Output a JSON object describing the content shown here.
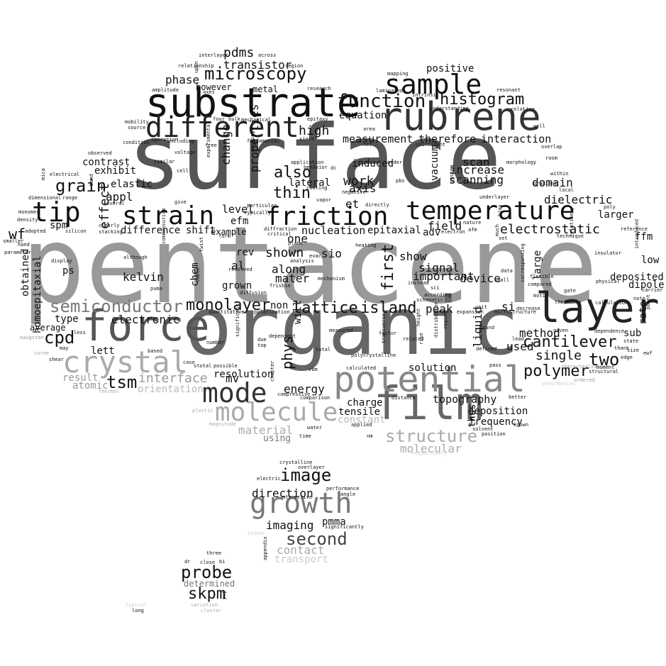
{
  "colors": {
    "background": "#ffffff",
    "black": "#111111",
    "dark": "#555555",
    "mid": "#7a7a7a",
    "light": "#a6a6a6",
    "faint": "#cccccc"
  },
  "words": [
    {
      "t": "pentacene",
      "c": "#999999"
    },
    {
      "t": "surface",
      "c": "#555555"
    },
    {
      "t": "organic",
      "c": "#666666"
    },
    {
      "t": "substrate",
      "c": "#111111"
    },
    {
      "t": "rubrene",
      "c": "#333333"
    },
    {
      "t": "different",
      "c": "#222222"
    },
    {
      "t": "film",
      "c": "#666666"
    },
    {
      "t": "force",
      "c": "#555555"
    },
    {
      "t": "layer",
      "c": "#222222"
    },
    {
      "t": "potential",
      "c": "#888888"
    },
    {
      "t": "growth",
      "c": "#777777"
    },
    {
      "t": "temperature",
      "c": "#111111"
    },
    {
      "t": "friction",
      "c": "#111111"
    },
    {
      "t": "strain",
      "c": "#111111"
    },
    {
      "t": "tip",
      "c": "#111111"
    },
    {
      "t": "sample",
      "c": "#111111"
    },
    {
      "t": "crystal",
      "c": "#aaaaaa"
    },
    {
      "t": "mode",
      "c": "#333333"
    },
    {
      "t": "molecule",
      "c": "#aaaaaa"
    },
    {
      "t": "microscopy",
      "c": "#111111"
    },
    {
      "t": "function",
      "c": "#111111"
    },
    {
      "t": "histogram",
      "c": "#111111"
    },
    {
      "t": "semiconductor",
      "c": "#777777"
    },
    {
      "t": "monolayer",
      "c": "#111111"
    },
    {
      "t": "lattice",
      "c": "#111111"
    },
    {
      "t": "island",
      "c": "#111111"
    },
    {
      "t": "structure",
      "c": "#aaaaaa"
    },
    {
      "t": "image",
      "c": "#111111"
    },
    {
      "t": "second",
      "c": "#444444"
    },
    {
      "t": "probe",
      "c": "#111111"
    },
    {
      "t": "skpm",
      "c": "#111111"
    },
    {
      "t": "tsm",
      "c": "#111111"
    },
    {
      "t": "cpd",
      "c": "#111111"
    },
    {
      "t": "grain",
      "c": "#111111"
    },
    {
      "t": "cantilever",
      "c": "#111111"
    },
    {
      "t": "polymer",
      "c": "#111111"
    },
    {
      "t": "two",
      "c": "#111111"
    },
    {
      "t": "electrostatic",
      "c": "#111111"
    },
    {
      "t": "transistor",
      "c": "#111111"
    },
    {
      "t": "pdms",
      "c": "#111111"
    },
    {
      "t": "phase",
      "c": "#111111"
    },
    {
      "t": "however",
      "c": "#111111"
    },
    {
      "t": "metal",
      "c": "#111111"
    },
    {
      "t": "also",
      "c": "#111111"
    },
    {
      "t": "thin",
      "c": "#111111"
    },
    {
      "t": "high",
      "c": "#111111"
    },
    {
      "t": "measurement",
      "c": "#111111"
    },
    {
      "t": "therefore",
      "c": "#111111"
    },
    {
      "t": "interaction",
      "c": "#111111"
    },
    {
      "t": "equation",
      "c": "#111111"
    },
    {
      "t": "positive",
      "c": "#111111"
    },
    {
      "t": "scan",
      "c": "#111111"
    },
    {
      "t": "increase",
      "c": "#111111"
    },
    {
      "t": "scanning",
      "c": "#111111"
    },
    {
      "t": "domain",
      "c": "#111111"
    },
    {
      "t": "dielectric",
      "c": "#111111"
    },
    {
      "t": "larger",
      "c": "#111111"
    },
    {
      "t": "ffm",
      "c": "#111111"
    },
    {
      "t": "low",
      "c": "#111111"
    },
    {
      "t": "deposited",
      "c": "#111111"
    },
    {
      "t": "dipole",
      "c": "#111111"
    },
    {
      "t": "rate",
      "c": "#111111"
    },
    {
      "t": "sub",
      "c": "#111111"
    },
    {
      "t": "large",
      "c": "#111111"
    },
    {
      "t": "method",
      "c": "#111111"
    },
    {
      "t": "used",
      "c": "#111111"
    },
    {
      "t": "single",
      "c": "#111111"
    },
    {
      "t": "liquid",
      "c": "#111111"
    },
    {
      "t": "si",
      "c": "#111111"
    },
    {
      "t": "peak",
      "c": "#111111"
    },
    {
      "t": "device",
      "c": "#111111"
    },
    {
      "t": "signal",
      "c": "#111111"
    },
    {
      "t": "important",
      "c": "#111111"
    },
    {
      "t": "show",
      "c": "#111111"
    },
    {
      "t": "first",
      "c": "#111111"
    },
    {
      "t": "along",
      "c": "#111111"
    },
    {
      "t": "mater",
      "c": "#111111"
    },
    {
      "t": "shown",
      "c": "#111111"
    },
    {
      "t": "sio",
      "c": "#111111"
    },
    {
      "t": "one",
      "c": "#111111"
    },
    {
      "t": "nucleation",
      "c": "#111111"
    },
    {
      "t": "epitaxial",
      "c": "#111111"
    },
    {
      "t": "adv",
      "c": "#111111"
    },
    {
      "t": "field",
      "c": "#111111"
    },
    {
      "t": "vacuum",
      "c": "#111111"
    },
    {
      "t": "work",
      "c": "#111111"
    },
    {
      "t": "axis",
      "c": "#111111"
    },
    {
      "t": "et",
      "c": "#111111"
    },
    {
      "t": "induced",
      "c": "#111111"
    },
    {
      "t": "lateral",
      "c": "#111111"
    },
    {
      "t": "properties",
      "c": "#111111"
    },
    {
      "t": "change",
      "c": "#111111"
    },
    {
      "t": "level",
      "c": "#111111"
    },
    {
      "t": "efm",
      "c": "#111111"
    },
    {
      "t": "shift",
      "c": "#111111"
    },
    {
      "t": "example",
      "c": "#111111"
    },
    {
      "t": "difference",
      "c": "#111111"
    },
    {
      "t": "spm",
      "c": "#111111"
    },
    {
      "t": "effect",
      "c": "#111111"
    },
    {
      "t": "appl",
      "c": "#111111"
    },
    {
      "t": "elastic",
      "c": "#111111"
    },
    {
      "t": "exhibit",
      "c": "#111111"
    },
    {
      "t": "contrast",
      "c": "#111111"
    },
    {
      "t": "wf",
      "c": "#111111"
    },
    {
      "t": "obtained",
      "c": "#111111"
    },
    {
      "t": "homoepitaxial",
      "c": "#111111"
    },
    {
      "t": "average",
      "c": "#111111"
    },
    {
      "t": "type",
      "c": "#111111"
    },
    {
      "t": "ps",
      "c": "#111111"
    },
    {
      "t": "kelvin",
      "c": "#111111"
    },
    {
      "t": "chem",
      "c": "#111111"
    },
    {
      "t": "electronic",
      "c": "#111111"
    },
    {
      "t": "lett",
      "c": "#111111"
    },
    {
      "t": "result",
      "c": "#999999"
    },
    {
      "t": "atomic",
      "c": "#999999"
    },
    {
      "t": "interface",
      "c": "#999999"
    },
    {
      "t": "orientation",
      "c": "#bbbbbb"
    },
    {
      "t": "rev",
      "c": "#111111"
    },
    {
      "t": "al",
      "c": "#111111"
    },
    {
      "t": "grown",
      "c": "#111111"
    },
    {
      "t": "mv",
      "c": "#111111"
    },
    {
      "t": "non",
      "c": "#111111"
    },
    {
      "t": "will",
      "c": "#111111"
    },
    {
      "t": "phys",
      "c": "#111111"
    },
    {
      "t": "resolution",
      "c": "#111111"
    },
    {
      "t": "energy",
      "c": "#111111"
    },
    {
      "t": "charge",
      "c": "#111111"
    },
    {
      "t": "tensile",
      "c": "#111111"
    },
    {
      "t": "constant",
      "c": "#bbbbbb"
    },
    {
      "t": "material",
      "c": "#aaaaaa"
    },
    {
      "t": "using",
      "c": "#777777"
    },
    {
      "t": "solution",
      "c": "#111111"
    },
    {
      "t": "topography",
      "c": "#111111"
    },
    {
      "t": "deposition",
      "c": "#111111"
    },
    {
      "t": "frequency",
      "c": "#111111"
    },
    {
      "t": "thus",
      "c": "#111111"
    },
    {
      "t": "molecular",
      "c": "#aaaaaa"
    },
    {
      "t": "direction",
      "c": "#111111"
    },
    {
      "t": "imaging",
      "c": "#111111"
    },
    {
      "t": "pmma",
      "c": "#111111"
    },
    {
      "t": "contact",
      "c": "#aaaaaa"
    },
    {
      "t": "transport",
      "c": "#cccccc"
    },
    {
      "t": "determined",
      "c": "#777777"
    },
    {
      "t": "relationship",
      "c": "#111111"
    },
    {
      "t": "interlayer",
      "c": "#111111"
    },
    {
      "t": "across",
      "c": "#111111"
    },
    {
      "t": "region",
      "c": "#111111"
    },
    {
      "t": "amplitude",
      "c": "#111111"
    },
    {
      "t": "fundamental",
      "c": "#111111"
    },
    {
      "t": "mechanical",
      "c": "#111111"
    },
    {
      "t": "mobility",
      "c": "#111111"
    },
    {
      "t": "source",
      "c": "#111111"
    },
    {
      "t": "operation",
      "c": "#111111"
    },
    {
      "t": "condition",
      "c": "#111111"
    },
    {
      "t": "free",
      "c": "#111111"
    },
    {
      "t": "observed",
      "c": "#111111"
    },
    {
      "t": "voltage",
      "c": "#111111"
    },
    {
      "t": "similar",
      "c": "#111111"
    },
    {
      "t": "electrical",
      "c": "#111111"
    },
    {
      "t": "cell",
      "c": "#111111"
    },
    {
      "t": "dimensional",
      "c": "#111111"
    },
    {
      "t": "range",
      "c": "#111111"
    },
    {
      "t": "several",
      "c": "#111111"
    },
    {
      "t": "monomer",
      "c": "#111111"
    },
    {
      "t": "density",
      "c": "#111111"
    },
    {
      "t": "adopted",
      "c": "#111111"
    },
    {
      "t": "silicon",
      "c": "#111111"
    },
    {
      "t": "stacking",
      "c": "#111111"
    },
    {
      "t": "parameter",
      "c": "#111111"
    },
    {
      "t": "display",
      "c": "#111111"
    },
    {
      "t": "although",
      "c": "#111111"
    },
    {
      "t": "diffraction",
      "c": "#111111"
    },
    {
      "t": "critical",
      "c": "#111111"
    },
    {
      "t": "plane",
      "c": "#111111"
    },
    {
      "t": "analysis",
      "c": "#111111"
    },
    {
      "t": "heating",
      "c": "#111111"
    },
    {
      "t": "resolved",
      "c": "#111111"
    },
    {
      "t": "mechanism",
      "c": "#111111"
    },
    {
      "t": "frisbie",
      "c": "#111111"
    },
    {
      "t": "diffusion",
      "c": "#111111"
    },
    {
      "t": "polarization",
      "c": "#111111"
    },
    {
      "t": "quantitative",
      "c": "#111111"
    },
    {
      "t": "dependent",
      "c": "#111111"
    },
    {
      "t": "measured",
      "c": "#111111"
    },
    {
      "t": "total",
      "c": "#111111"
    },
    {
      "t": "vbm",
      "c": "#111111"
    },
    {
      "t": "calculated",
      "c": "#111111"
    },
    {
      "t": "compressive",
      "c": "#111111"
    },
    {
      "t": "comparison",
      "c": "#111111"
    },
    {
      "t": "distance",
      "c": "#111111"
    },
    {
      "t": "applied",
      "c": "#111111"
    },
    {
      "t": "water",
      "c": "#111111"
    },
    {
      "t": "time",
      "c": "#111111"
    },
    {
      "t": "nm",
      "c": "#111111"
    },
    {
      "t": "crystalline",
      "c": "#111111"
    },
    {
      "t": "overlayer",
      "c": "#111111"
    },
    {
      "t": "electric",
      "c": "#111111"
    },
    {
      "t": "performance",
      "c": "#111111"
    },
    {
      "t": "angle",
      "c": "#111111"
    },
    {
      "t": "attractive",
      "c": "#111111"
    },
    {
      "t": "significantly",
      "c": "#111111"
    },
    {
      "t": "either",
      "c": "#cccccc"
    },
    {
      "t": "appendix",
      "c": "#111111"
    },
    {
      "t": "three",
      "c": "#111111"
    },
    {
      "t": "close",
      "c": "#111111"
    },
    {
      "t": "bi",
      "c": "#111111"
    },
    {
      "t": "dr",
      "c": "#111111"
    },
    {
      "t": "typical",
      "c": "#cccccc"
    },
    {
      "t": "long",
      "c": "#111111"
    },
    {
      "t": "variation",
      "c": "#aaaaaa"
    },
    {
      "t": "cluster",
      "c": "#aaaaaa"
    },
    {
      "t": "pvp",
      "c": "#111111"
    },
    {
      "t": "known",
      "c": "#111111"
    },
    {
      "t": "better",
      "c": "#111111"
    },
    {
      "t": "pass",
      "c": "#111111"
    },
    {
      "t": "solvent",
      "c": "#111111"
    },
    {
      "t": "position",
      "c": "#111111"
    },
    {
      "t": "respectively",
      "c": "#cccccc"
    },
    {
      "t": "reference",
      "c": "#111111"
    },
    {
      "t": "poly",
      "c": "#111111"
    },
    {
      "t": "insulator",
      "c": "#111111"
    },
    {
      "t": "physical",
      "c": "#111111"
    },
    {
      "t": "carrier",
      "c": "#111111"
    },
    {
      "t": "note",
      "c": "#111111"
    },
    {
      "t": "point",
      "c": "#111111"
    },
    {
      "t": "calculation",
      "c": "#111111"
    },
    {
      "t": "dependence",
      "c": "#111111"
    },
    {
      "t": "state",
      "c": "#111111"
    },
    {
      "t": "size",
      "c": "#111111"
    },
    {
      "t": "edge",
      "c": "#111111"
    },
    {
      "t": "moment",
      "c": "#111111"
    },
    {
      "t": "ordered",
      "c": "#999999"
    },
    {
      "t": "deformation",
      "c": "#cccccc"
    },
    {
      "t": "characterization",
      "c": "#999999"
    },
    {
      "t": "structural",
      "c": "#111111"
    },
    {
      "t": "thermally",
      "c": "#111111"
    },
    {
      "t": "gate",
      "c": "#111111"
    },
    {
      "t": "given",
      "c": "#111111"
    },
    {
      "t": "decrease",
      "c": "#111111"
    },
    {
      "t": "motif",
      "c": "#111111"
    },
    {
      "t": "compared",
      "c": "#111111"
    },
    {
      "t": "corresponding",
      "c": "#111111"
    },
    {
      "t": "flexible",
      "c": "#111111"
    },
    {
      "t": "data",
      "c": "#111111"
    },
    {
      "t": "small",
      "c": "#111111"
    },
    {
      "t": "technique",
      "c": "#111111"
    },
    {
      "t": "within",
      "c": "#111111"
    },
    {
      "t": "local",
      "c": "#111111"
    },
    {
      "t": "gradient",
      "c": "#111111"
    },
    {
      "t": "morphology",
      "c": "#111111"
    },
    {
      "t": "room",
      "c": "#111111"
    },
    {
      "t": "overlap",
      "c": "#111111"
    },
    {
      "t": "well",
      "c": "#111111"
    },
    {
      "t": "relative",
      "c": "#111111"
    },
    {
      "t": "resonant",
      "c": "#111111"
    },
    {
      "t": "research",
      "c": "#111111"
    },
    {
      "t": "laminated",
      "c": "#111111"
    },
    {
      "t": "intrinsic",
      "c": "#111111"
    },
    {
      "t": "mapping",
      "c": "#111111"
    },
    {
      "t": "understanding",
      "c": "#111111"
    },
    {
      "t": "coincident",
      "c": "#111111"
    },
    {
      "t": "since",
      "c": "#111111"
    },
    {
      "t": "epitaxy",
      "c": "#111111"
    },
    {
      "t": "cooling",
      "c": "#111111"
    },
    {
      "t": "application",
      "c": "#111111"
    },
    {
      "t": "behavior",
      "c": "#111111"
    },
    {
      "t": "order",
      "c": "#111111"
    },
    {
      "t": "pbs",
      "c": "#111111"
    },
    {
      "t": "negative",
      "c": "#111111"
    },
    {
      "t": "directly",
      "c": "#111111"
    },
    {
      "t": "vapor",
      "c": "#111111"
    },
    {
      "t": "system",
      "c": "#111111"
    },
    {
      "t": "underlayer",
      "c": "#111111"
    },
    {
      "t": "nature",
      "c": "#111111"
    },
    {
      "t": "afm",
      "c": "#111111"
    },
    {
      "t": "electron",
      "c": "#111111"
    },
    {
      "t": "much",
      "c": "#111111"
    },
    {
      "t": "bias",
      "c": "#111111"
    },
    {
      "t": "unit",
      "c": "#111111"
    },
    {
      "t": "expansion",
      "c": "#111111"
    },
    {
      "t": "found",
      "c": "#111111"
    },
    {
      "t": "lead",
      "c": "#111111"
    },
    {
      "t": "defined",
      "c": "#111111"
    },
    {
      "t": "microstructure",
      "c": "#111111"
    },
    {
      "t": "regime",
      "c": "#111111"
    },
    {
      "t": "distribution",
      "c": "#111111"
    },
    {
      "t": "height",
      "c": "#111111"
    },
    {
      "t": "rise",
      "c": "#111111"
    },
    {
      "t": "related",
      "c": "#111111"
    },
    {
      "t": "factor",
      "c": "#111111"
    },
    {
      "t": "transverse",
      "c": "#111111"
    },
    {
      "t": "polycrystalline",
      "c": "#111111"
    },
    {
      "t": "net",
      "c": "#111111"
    },
    {
      "t": "area",
      "c": "#111111"
    },
    {
      "t": "schematic",
      "c": "#111111"
    },
    {
      "t": "according",
      "c": "#111111"
    },
    {
      "t": "sci",
      "c": "#111111"
    },
    {
      "t": "instead",
      "c": "#111111"
    },
    {
      "t": "twist",
      "c": "#111111"
    },
    {
      "t": "commensurism",
      "c": "#111111"
    },
    {
      "t": "table",
      "c": "#111111"
    },
    {
      "t": "puma",
      "c": "#111111"
    },
    {
      "t": "case",
      "c": "#111111"
    },
    {
      "t": "plastic",
      "c": "#aaaaaa"
    },
    {
      "t": "magnitude",
      "c": "#aaaaaa"
    },
    {
      "t": "stotal",
      "c": "#111111"
    },
    {
      "t": "possible",
      "c": "#111111"
    },
    {
      "t": "significant",
      "c": "#111111"
    },
    {
      "t": "number",
      "c": "#111111"
    },
    {
      "t": "due",
      "c": "#111111"
    },
    {
      "t": "top",
      "c": "#111111"
    },
    {
      "t": "chapter",
      "c": "#111111"
    },
    {
      "t": "thermal",
      "c": "#aaaaaa"
    },
    {
      "t": "based",
      "c": "#111111"
    },
    {
      "t": "curve",
      "c": "#999999"
    },
    {
      "t": "shear",
      "c": "#111111"
    },
    {
      "t": "may",
      "c": "#111111"
    },
    {
      "t": "less",
      "c": "#111111"
    },
    {
      "t": "naugstan",
      "c": "#999999"
    },
    {
      "t": "give",
      "c": "#111111"
    },
    {
      "t": "clearly",
      "c": "#111111"
    },
    {
      "t": "particular",
      "c": "#111111"
    },
    {
      "t": "typically",
      "c": "#111111"
    },
    {
      "t": "form",
      "c": "#111111"
    },
    {
      "t": "including",
      "c": "#111111"
    },
    {
      "t": "experimental",
      "c": "#111111"
    },
    {
      "t": "packing",
      "c": "#111111"
    },
    {
      "t": "axes",
      "c": "#111111"
    },
    {
      "t": "upon",
      "c": "#111111"
    },
    {
      "t": "four",
      "c": "#111111"
    },
    {
      "t": "bulk",
      "c": "#111111"
    },
    {
      "t": "evac",
      "c": "#111111"
    },
    {
      "t": "dc",
      "c": "#111111"
    },
    {
      "t": "ewf",
      "c": "#111111"
    },
    {
      "t": "thank",
      "c": "#111111"
    },
    {
      "t": "band",
      "c": "#111111"
    },
    {
      "t": "mica",
      "c": "#111111"
    },
    {
      "t": "smaller",
      "c": "#111111"
    },
    {
      "t": "hand",
      "c": "#111111"
    },
    {
      "t": "set",
      "c": "#111111"
    },
    {
      "t": "introduced",
      "c": "#111111"
    },
    {
      "t": "relatively",
      "c": "#111111"
    }
  ]
}
